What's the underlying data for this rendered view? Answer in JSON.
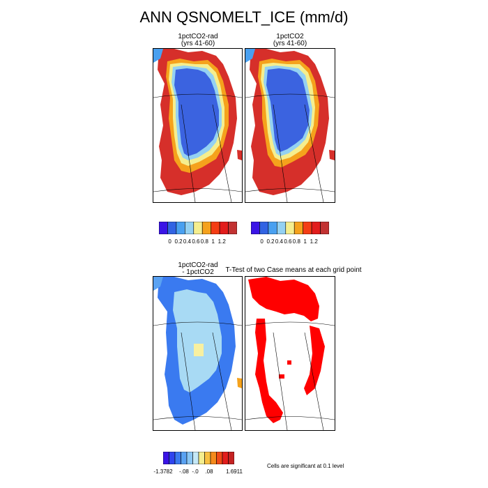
{
  "figure": {
    "title": "ANN QSNOMELT_ICE (mm/d)",
    "panels": {
      "top_left": {
        "title_line1": "1pctCO2-rad",
        "title_line2": "(yrs 41-60)"
      },
      "top_right": {
        "title_line1": "1pctCO2",
        "title_line2": "(yrs 41-60)"
      },
      "bottom_left": {
        "title_line1": "1pctCO2-rad",
        "title_line2": "- 1pctCO2"
      },
      "bottom_right": {
        "title": "T-Test of two Case means at each grid point"
      }
    },
    "note": "Cells are significant at 0.1 level"
  },
  "colorbar_top": {
    "colors": [
      "#3a14e6",
      "#3163e3",
      "#49a0f0",
      "#94d1f2",
      "#f5ee8e",
      "#f5a21c",
      "#f43d14",
      "#e21d1c",
      "#c23232"
    ],
    "tick_labels": [
      "0",
      "0.2",
      "0.4",
      "0.6",
      "0.8",
      "1",
      "1.2"
    ]
  },
  "colorbar_bottom": {
    "colors": [
      "#3a14e6",
      "#2e44ee",
      "#3a7af0",
      "#5aa2f2",
      "#8ac6f4",
      "#c4e8f6",
      "#f5ee8e",
      "#f8c040",
      "#f58a1c",
      "#f04a18",
      "#e21d1c",
      "#c52222"
    ],
    "tick_labels": [
      "-1.3782",
      "-.08",
      "-.0",
      ".08",
      "1.6911"
    ]
  },
  "map_colors": {
    "ice_blue": "#3b63e0",
    "light_blue": "#94d1f2",
    "mid_blue": "#49a0f0",
    "yellow": "#f5ee8e",
    "orange": "#f5a21c",
    "red": "#d62f2a",
    "signif_red": "#ff0000",
    "diff_blue": "#3a7af0",
    "diff_lightblue": "#a8daf4",
    "diff_yellow": "#f8f0a0"
  }
}
